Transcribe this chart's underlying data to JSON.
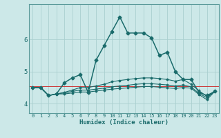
{
  "xlabel": "Humidex (Indice chaleur)",
  "bg_color": "#cce8e8",
  "grid_color_major": "#aacfcf",
  "grid_color_minor": "#bbdcdc",
  "line_color": "#1a6b6b",
  "xlim": [
    -0.5,
    23.5
  ],
  "ylim": [
    3.7,
    7.1
  ],
  "xticks": [
    0,
    1,
    2,
    3,
    4,
    5,
    6,
    7,
    8,
    9,
    10,
    11,
    12,
    13,
    14,
    15,
    16,
    17,
    18,
    19,
    20,
    21,
    22,
    23
  ],
  "yticks": [
    4,
    5,
    6
  ],
  "red_line_y": 4.55,
  "series": [
    [
      4.5,
      4.5,
      4.25,
      4.3,
      4.65,
      4.8,
      4.9,
      4.35,
      5.35,
      5.8,
      6.25,
      6.7,
      6.2,
      6.2,
      6.2,
      6.05,
      5.5,
      5.6,
      5.0,
      4.75,
      4.75,
      4.35,
      4.25,
      4.38
    ],
    [
      4.5,
      4.5,
      4.25,
      4.3,
      4.35,
      4.42,
      4.5,
      4.5,
      4.55,
      4.6,
      4.68,
      4.72,
      4.75,
      4.78,
      4.8,
      4.8,
      4.78,
      4.75,
      4.7,
      4.75,
      4.6,
      4.4,
      4.22,
      4.38
    ],
    [
      4.5,
      4.5,
      4.25,
      4.3,
      4.33,
      4.38,
      4.42,
      4.42,
      4.45,
      4.48,
      4.52,
      4.55,
      4.57,
      4.6,
      4.62,
      4.62,
      4.6,
      4.58,
      4.55,
      4.58,
      4.52,
      4.32,
      4.18,
      4.38
    ],
    [
      4.5,
      4.5,
      4.25,
      4.3,
      4.3,
      4.33,
      4.36,
      4.36,
      4.39,
      4.42,
      4.45,
      4.47,
      4.49,
      4.51,
      4.53,
      4.53,
      4.51,
      4.49,
      4.47,
      4.5,
      4.48,
      4.28,
      4.12,
      4.38
    ]
  ]
}
